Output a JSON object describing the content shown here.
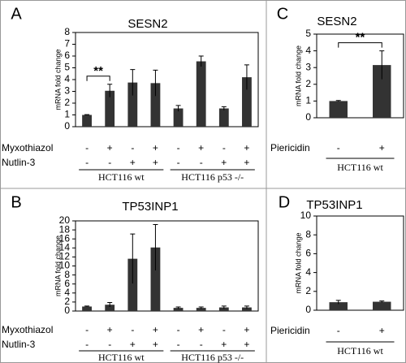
{
  "chart_data": [
    {
      "type": "bar",
      "panel": "A",
      "title": "SESN2",
      "ylabel": "mRNA fold change",
      "values": [
        1.0,
        3.05,
        3.75,
        3.7,
        1.55,
        5.55,
        1.55,
        4.2
      ],
      "errors": [
        0.03,
        0.55,
        1.1,
        1.1,
        0.25,
        0.45,
        0.15,
        1.05
      ],
      "color": "#333333",
      "ylim": [
        0,
        8
      ],
      "yticks": [
        0,
        1,
        2,
        3,
        4,
        5,
        6,
        7,
        8
      ],
      "significance": "**",
      "treatments": [
        {
          "name": "Myxothiazol",
          "signs": [
            "-",
            "+",
            "-",
            "+",
            "-",
            "+",
            "-",
            "+"
          ]
        },
        {
          "name": "Nutlin-3",
          "signs": [
            "-",
            "-",
            "+",
            "+",
            "-",
            "-",
            "+",
            "+"
          ]
        }
      ],
      "groups": [
        "HCT116 wt",
        "HCT116 p53 -/-"
      ]
    },
    {
      "type": "bar",
      "panel": "C",
      "title": "SESN2",
      "ylabel": "mRNA fold change",
      "values": [
        1.0,
        3.15
      ],
      "errors": [
        0.03,
        0.85
      ],
      "color": "#333333",
      "ylim": [
        0,
        5
      ],
      "yticks": [
        0,
        1,
        2,
        3,
        4,
        5
      ],
      "significance": "**",
      "treatments": [
        {
          "name": "Piericidin",
          "signs": [
            "-",
            "+"
          ]
        }
      ],
      "groups": [
        "HCT116 wt"
      ]
    },
    {
      "type": "bar",
      "panel": "B",
      "title": "TP53INP1",
      "ylabel": "mRNA fold change",
      "values": [
        1.0,
        1.4,
        11.6,
        14.1,
        0.7,
        0.7,
        0.8,
        0.8
      ],
      "errors": [
        0.1,
        0.5,
        5.5,
        5.1,
        0.2,
        0.2,
        0.3,
        0.3
      ],
      "color": "#333333",
      "ylim": [
        0,
        20
      ],
      "yticks": [
        0,
        2,
        4,
        6,
        8,
        10,
        12,
        14,
        16,
        18,
        20
      ],
      "treatments": [
        {
          "name": "Myxothiazol",
          "signs": [
            "-",
            "+",
            "-",
            "+",
            "-",
            "+",
            "-",
            "+"
          ]
        },
        {
          "name": "Nutlin-3",
          "signs": [
            "-",
            "-",
            "+",
            "+",
            "-",
            "-",
            "+",
            "+"
          ]
        }
      ],
      "groups": [
        "HCT116 wt",
        "HCT116 p53 -/-"
      ]
    },
    {
      "type": "bar",
      "panel": "D",
      "title": "TP53INP1",
      "ylabel": "mRNA fold change",
      "values": [
        0.85,
        0.9
      ],
      "errors": [
        0.2,
        0.08
      ],
      "color": "#333333",
      "ylim": [
        0,
        10
      ],
      "yticks": [
        0,
        2,
        4,
        6,
        8,
        10
      ],
      "treatments": [
        {
          "name": "Piericidin",
          "signs": [
            "-",
            "+"
          ]
        }
      ],
      "groups": [
        "HCT116 wt"
      ]
    }
  ]
}
